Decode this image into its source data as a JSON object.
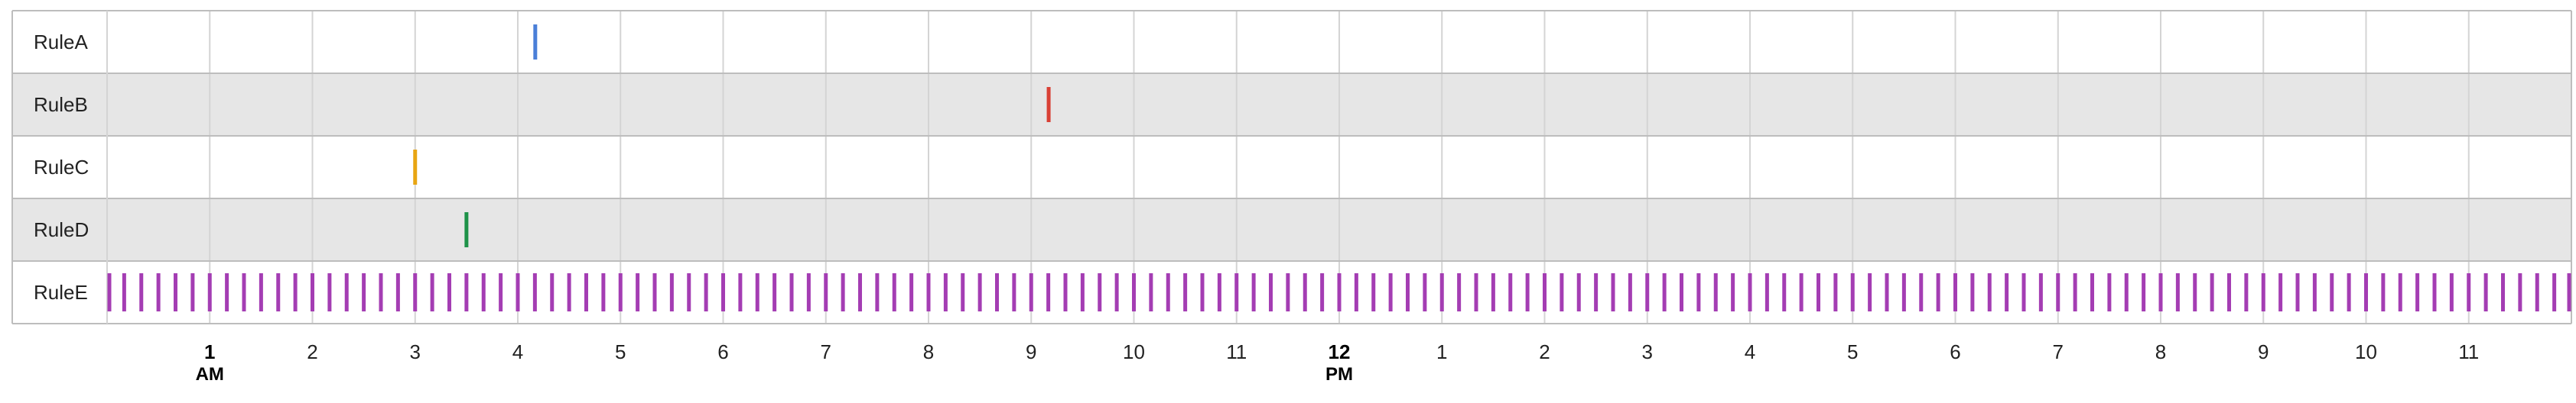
{
  "chart_data": {
    "type": "timeline",
    "x_unit": "hour of day",
    "xlim": [
      0,
      24
    ],
    "rows": [
      {
        "label": "RuleA",
        "color": "#4a7fd8",
        "events": [
          4.17
        ]
      },
      {
        "label": "RuleB",
        "color": "#d94035",
        "events": [
          9.17
        ]
      },
      {
        "label": "RuleC",
        "color": "#e8a512",
        "events": [
          3.0
        ]
      },
      {
        "label": "RuleD",
        "color": "#1e9248",
        "events": [
          3.5
        ]
      },
      {
        "label": "RuleE",
        "color": "#a43db3",
        "events": [],
        "repeat": {
          "start": 0,
          "end": 24,
          "every_minutes": 10
        }
      }
    ],
    "ticks": [
      {
        "value": 1,
        "label": "1",
        "sub": "AM",
        "bold": true
      },
      {
        "value": 2,
        "label": "2"
      },
      {
        "value": 3,
        "label": "3"
      },
      {
        "value": 4,
        "label": "4"
      },
      {
        "value": 5,
        "label": "5"
      },
      {
        "value": 6,
        "label": "6"
      },
      {
        "value": 7,
        "label": "7"
      },
      {
        "value": 8,
        "label": "8"
      },
      {
        "value": 9,
        "label": "9"
      },
      {
        "value": 10,
        "label": "10"
      },
      {
        "value": 11,
        "label": "11"
      },
      {
        "value": 12,
        "label": "12",
        "sub": "PM",
        "bold": true
      },
      {
        "value": 13,
        "label": "1"
      },
      {
        "value": 14,
        "label": "2"
      },
      {
        "value": 15,
        "label": "3"
      },
      {
        "value": 16,
        "label": "4"
      },
      {
        "value": 17,
        "label": "5"
      },
      {
        "value": 18,
        "label": "6"
      },
      {
        "value": 19,
        "label": "7"
      },
      {
        "value": 20,
        "label": "8"
      },
      {
        "value": 21,
        "label": "9"
      },
      {
        "value": 22,
        "label": "10"
      },
      {
        "value": 23,
        "label": "11"
      }
    ],
    "row_backgrounds": [
      "#ffffff",
      "#e6e6e6"
    ],
    "grid": true,
    "legend": "none"
  }
}
